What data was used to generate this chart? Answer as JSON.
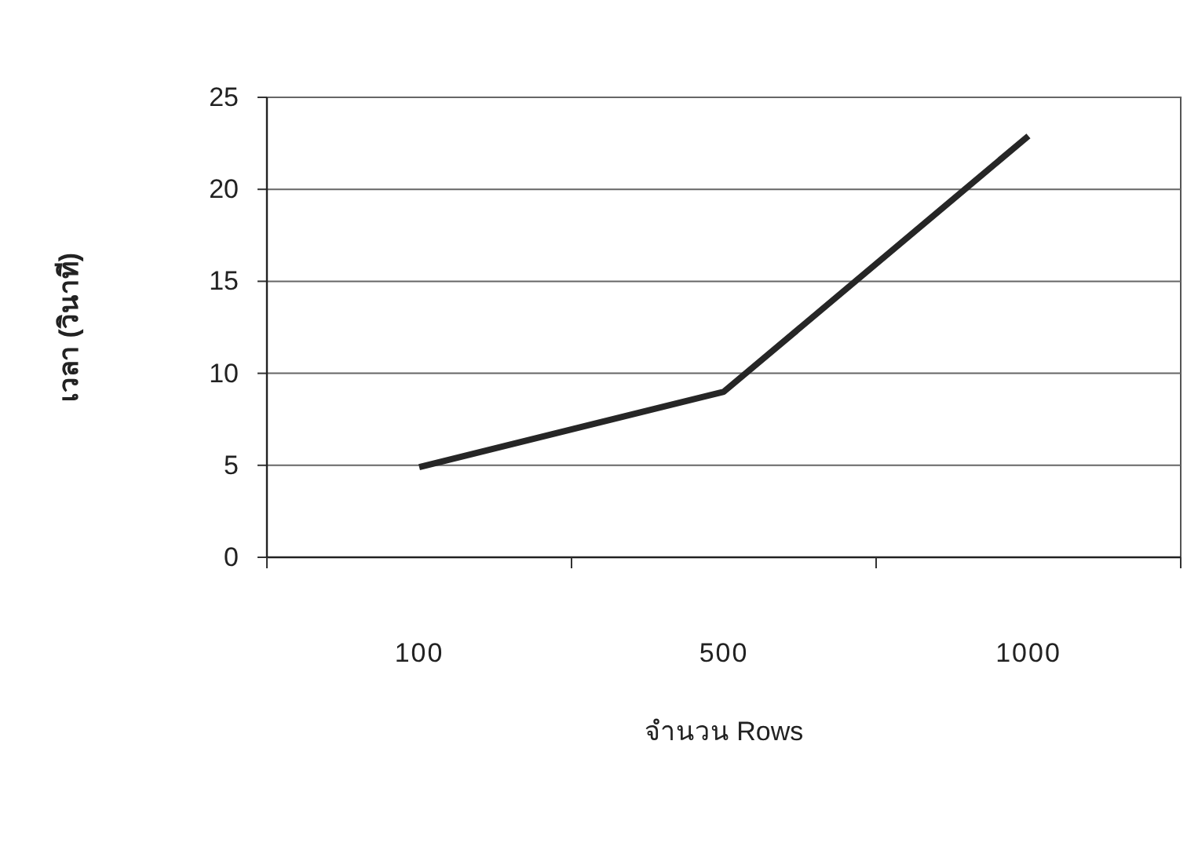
{
  "chart_data": {
    "type": "line",
    "xlabel": "จำนวน Rows",
    "ylabel": "เวลา (วินาที)",
    "categories": [
      "100",
      "500",
      "1000"
    ],
    "series": [
      {
        "color": "#262626",
        "values": [
          4.9,
          9,
          22.9
        ]
      }
    ],
    "ylim": [
      0,
      25
    ],
    "yticks": [
      0,
      5,
      10,
      15,
      20,
      25
    ],
    "grid": "y",
    "marker": "none",
    "line_style": "solid"
  }
}
